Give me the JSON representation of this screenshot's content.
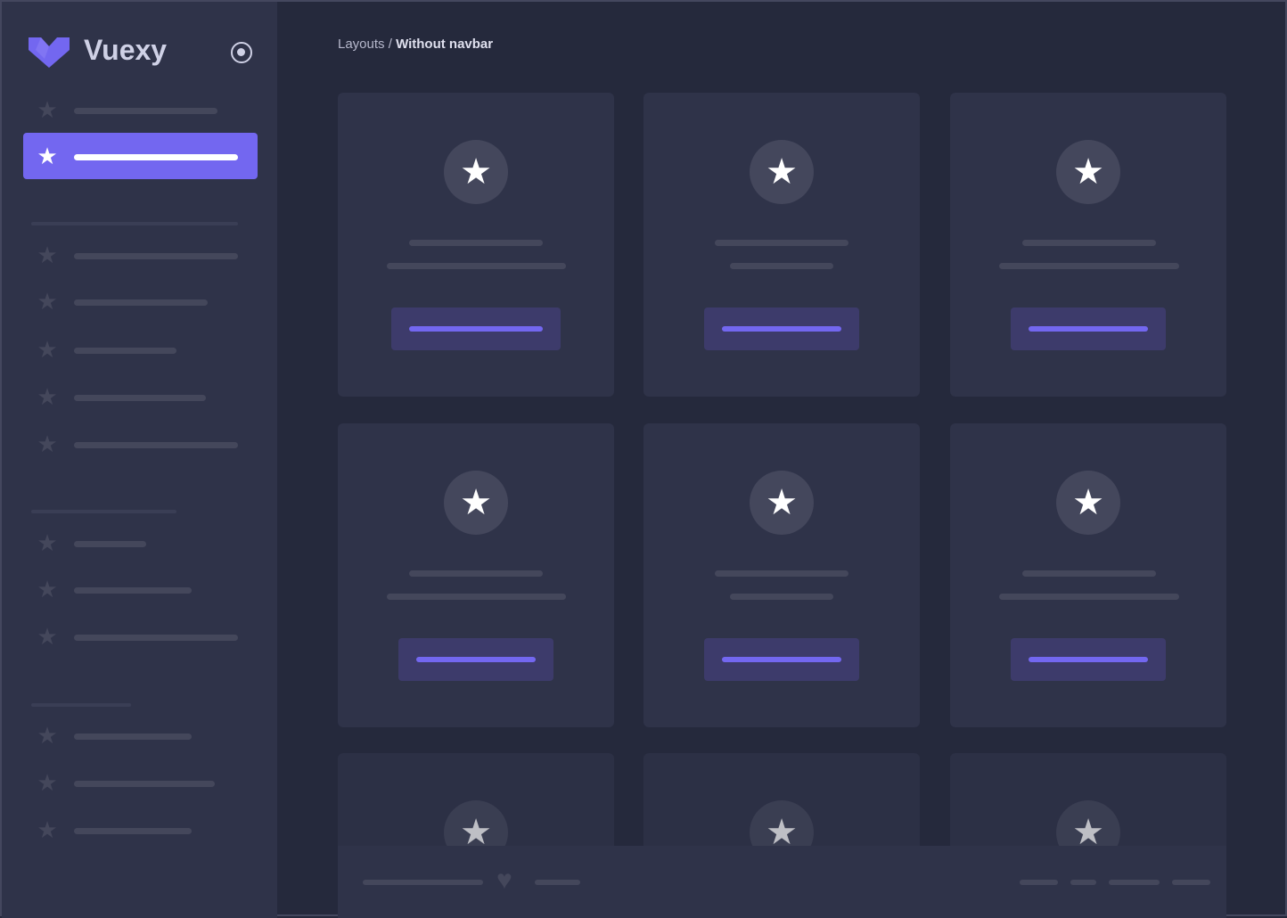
{
  "brand": {
    "name": "Vuexy",
    "logo_color": "#7367f0"
  },
  "sidebar": {
    "toggle_icon": "radio-circle-icon",
    "item_icon": "star-icon",
    "active_index": 1
  },
  "breadcrumb": {
    "parent": "Layouts",
    "separator": " / ",
    "current": "Without navbar"
  },
  "cards": {
    "icon": "star-icon",
    "count": 9
  },
  "footer": {
    "icon": "heart-icon"
  },
  "colors": {
    "primary": "#7367f0",
    "sidebar_bg": "#2f3349",
    "body_bg": "#25293c",
    "card_bg": "#2f3349",
    "skeleton": "#44475b"
  }
}
